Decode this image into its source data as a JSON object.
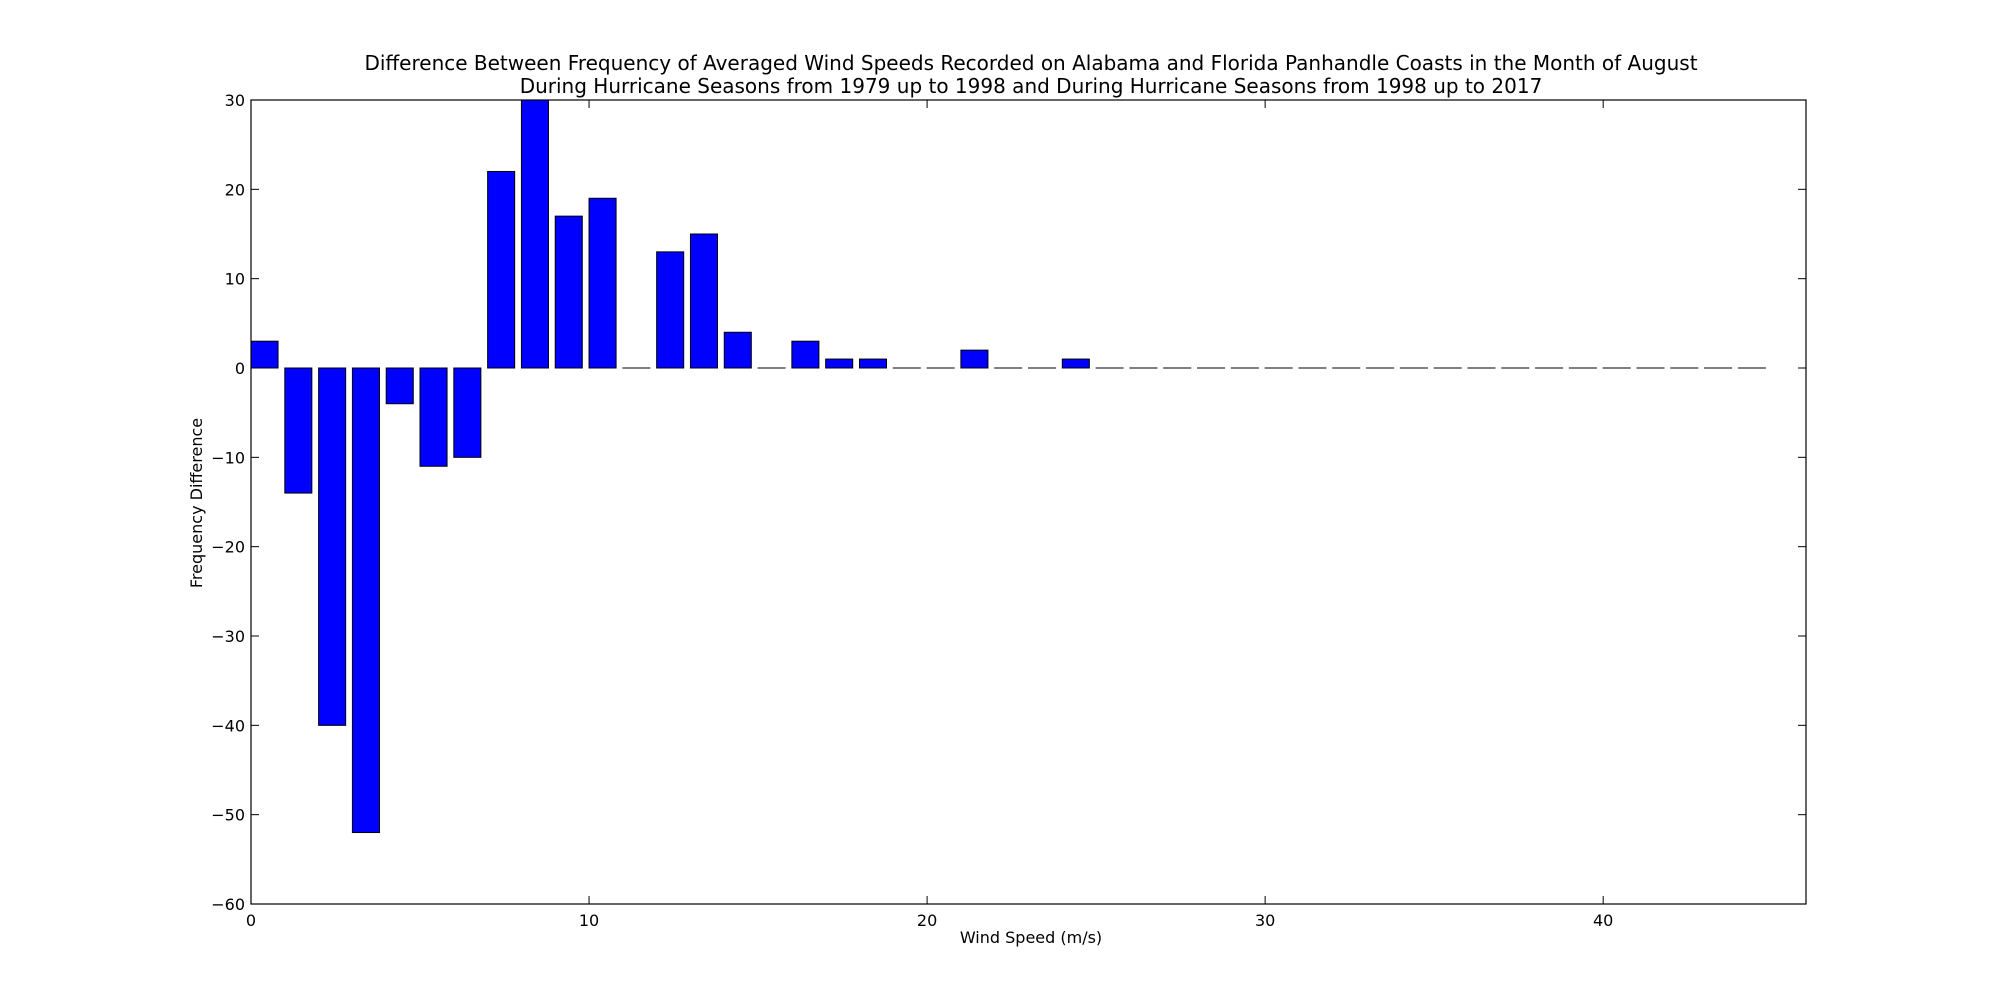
{
  "chart_data": {
    "type": "bar",
    "title": "Difference Between Frequency of Averaged Wind Speeds Recorded on Alabama and Florida Panhandle Coasts in the Month of August",
    "subtitle": "During Hurricane Seasons from 1979 up to 1998 and During Hurricane Seasons from 1998 up to 2017",
    "xlabel": "Wind Speed (m/s)",
    "ylabel": "Frequency Difference",
    "xlim": [
      0,
      46
    ],
    "ylim": [
      -60,
      30
    ],
    "xticks": [
      0,
      10,
      20,
      30,
      40
    ],
    "yticks": [
      -60,
      -50,
      -40,
      -30,
      -20,
      -10,
      0,
      10,
      20,
      30
    ],
    "grid": false,
    "bar_color": "#0000ff",
    "x": [
      0,
      1,
      2,
      3,
      4,
      5,
      6,
      7,
      8,
      9,
      10,
      11,
      12,
      13,
      14,
      15,
      16,
      17,
      18,
      19,
      20,
      21,
      22,
      23,
      24,
      25,
      26,
      27,
      28,
      29,
      30,
      31,
      32,
      33,
      34,
      35,
      36,
      37,
      38,
      39,
      40,
      41,
      42,
      43,
      44
    ],
    "values": [
      3,
      -14,
      -40,
      -52,
      -4,
      -11,
      -10,
      22,
      30,
      17,
      19,
      0,
      13,
      15,
      4,
      0,
      3,
      1,
      1,
      0,
      0,
      2,
      0,
      0,
      1,
      0,
      0,
      0,
      0,
      0,
      0,
      0,
      0,
      0,
      0,
      0,
      0,
      0,
      0,
      0,
      0,
      0,
      0,
      0,
      0
    ]
  }
}
